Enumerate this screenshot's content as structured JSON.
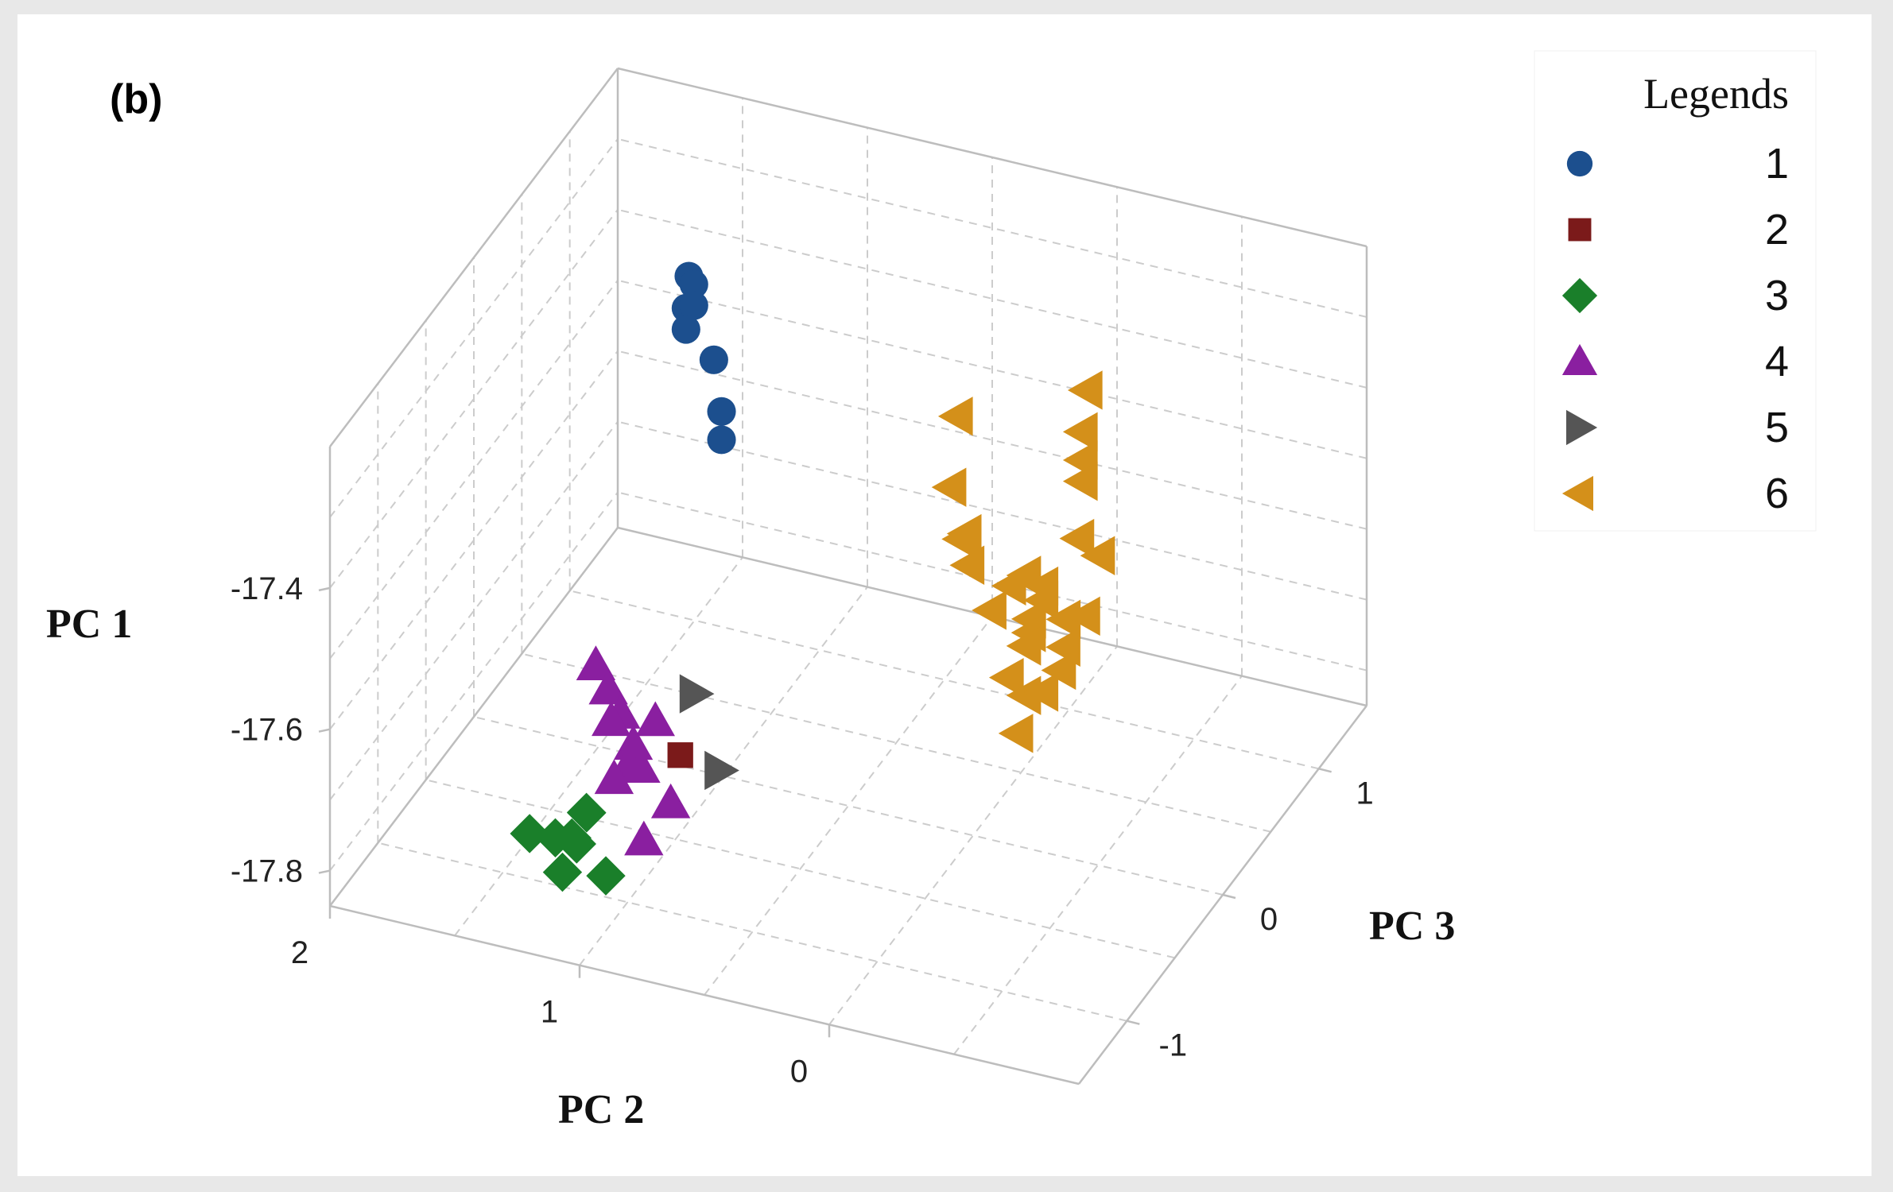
{
  "chart_data": {
    "type": "scatter",
    "subtype": "3d-scatter",
    "panel_label": "(b)",
    "axes": {
      "vertical": {
        "label": "PC 1",
        "ticks": [
          "-17.4",
          "-17.6",
          "-17.8"
        ],
        "tick_values": [
          -17.4,
          -17.6,
          -17.8
        ],
        "range": [
          -17.85,
          -17.2
        ]
      },
      "left_depth": {
        "label": "PC 2",
        "ticks": [
          "2",
          "1",
          "0"
        ],
        "tick_values": [
          2,
          1,
          0
        ],
        "range": [
          -1.0,
          2.0
        ]
      },
      "right_depth": {
        "label": "PC 3",
        "ticks": [
          "1",
          "0",
          "-1"
        ],
        "tick_values": [
          1,
          0,
          -1
        ],
        "range": [
          -1.5,
          1.5
        ]
      }
    },
    "grid": true,
    "legend": {
      "title": "Legends",
      "placement": "top-right",
      "entries": [
        {
          "label": "1",
          "marker": "circle",
          "color": "#1c4f8e"
        },
        {
          "label": "2",
          "marker": "square",
          "color": "#7b1a1a"
        },
        {
          "label": "3",
          "marker": "diamond",
          "color": "#1a7f2a"
        },
        {
          "label": "4",
          "marker": "triangle-up",
          "color": "#8a1fa0"
        },
        {
          "label": "5",
          "marker": "triangle-right",
          "color": "#555555"
        },
        {
          "label": "6",
          "marker": "triangle-left",
          "color": "#d4901a"
        }
      ]
    },
    "series": [
      {
        "name": "1",
        "points": [
          {
            "pc1": -17.27,
            "pc2": 1.35,
            "pc3": 0.55
          },
          {
            "pc1": -17.28,
            "pc2": 1.33,
            "pc3": 0.55
          },
          {
            "pc1": -17.31,
            "pc2": 1.35,
            "pc3": 0.52
          },
          {
            "pc1": -17.31,
            "pc2": 1.33,
            "pc3": 0.55
          },
          {
            "pc1": -17.34,
            "pc2": 1.35,
            "pc3": 0.52
          },
          {
            "pc1": -17.38,
            "pc2": 1.25,
            "pc3": 0.55
          },
          {
            "pc1": -17.44,
            "pc2": 1.2,
            "pc3": 0.5
          },
          {
            "pc1": -17.48,
            "pc2": 1.2,
            "pc3": 0.5
          }
        ]
      },
      {
        "name": "2",
        "points": [
          {
            "pc1": -17.74,
            "pc2": 1.0,
            "pc3": -0.45
          }
        ]
      },
      {
        "name": "3",
        "points": [
          {
            "pc1": -17.82,
            "pc2": 1.3,
            "pc3": -0.8
          },
          {
            "pc1": -17.8,
            "pc2": 1.28,
            "pc3": -0.7
          },
          {
            "pc1": -17.79,
            "pc2": 1.26,
            "pc3": -0.75
          },
          {
            "pc1": -17.79,
            "pc2": 1.4,
            "pc3": -0.98
          },
          {
            "pc1": -17.8,
            "pc2": 1.32,
            "pc3": -0.92
          },
          {
            "pc1": -17.81,
            "pc2": 1.25,
            "pc3": -0.88
          },
          {
            "pc1": -17.84,
            "pc2": 1.28,
            "pc3": -0.95
          },
          {
            "pc1": -17.86,
            "pc2": 1.16,
            "pc3": -0.81
          }
        ]
      },
      {
        "name": "4",
        "points": [
          {
            "pc1": -17.62,
            "pc2": 1.3,
            "pc3": -0.55
          },
          {
            "pc1": -17.65,
            "pc2": 1.25,
            "pc3": -0.55
          },
          {
            "pc1": -17.68,
            "pc2": 1.2,
            "pc3": -0.55
          },
          {
            "pc1": -17.7,
            "pc2": 1.25,
            "pc3": -0.52
          },
          {
            "pc1": -17.7,
            "pc2": 1.1,
            "pc3": -0.45
          },
          {
            "pc1": -17.72,
            "pc2": 1.15,
            "pc3": -0.55
          },
          {
            "pc1": -17.74,
            "pc2": 1.15,
            "pc3": -0.6
          },
          {
            "pc1": -17.76,
            "pc2": 1.2,
            "pc3": -0.62
          },
          {
            "pc1": -17.75,
            "pc2": 1.12,
            "pc3": -0.55
          },
          {
            "pc1": -17.79,
            "pc2": 1.0,
            "pc3": -0.55
          },
          {
            "pc1": -17.82,
            "pc2": 1.05,
            "pc3": -0.7
          }
        ]
      },
      {
        "name": "5",
        "points": [
          {
            "pc1": -17.68,
            "pc2": 1.0,
            "pc3": -0.3
          },
          {
            "pc1": -17.78,
            "pc2": 0.9,
            "pc3": -0.3
          }
        ]
      },
      {
        "name": "6",
        "points": [
          {
            "pc1": -17.35,
            "pc2": -0.15,
            "pc3": 0.8
          },
          {
            "pc1": -17.4,
            "pc2": -0.15,
            "pc3": 0.75
          },
          {
            "pc1": -17.42,
            "pc2": 0.35,
            "pc3": 0.75
          },
          {
            "pc1": -17.44,
            "pc2": -0.15,
            "pc3": 0.75
          },
          {
            "pc1": -17.47,
            "pc2": 0.28,
            "pc3": 0.5
          },
          {
            "pc1": -17.47,
            "pc2": -0.15,
            "pc3": 0.75
          },
          {
            "pc1": -17.52,
            "pc2": 0.2,
            "pc3": 0.45
          },
          {
            "pc1": -17.54,
            "pc2": 0.24,
            "pc3": 0.5
          },
          {
            "pc1": -17.55,
            "pc2": -0.14,
            "pc3": 0.74
          },
          {
            "pc1": -17.57,
            "pc2": 0.2,
            "pc3": 0.48
          },
          {
            "pc1": -17.58,
            "pc2": 0.0,
            "pc3": 0.55
          },
          {
            "pc1": -17.6,
            "pc2": -0.05,
            "pc3": 0.6
          },
          {
            "pc1": -17.58,
            "pc2": -0.2,
            "pc3": 0.8
          },
          {
            "pc1": -17.62,
            "pc2": 0.1,
            "pc3": 0.45
          },
          {
            "pc1": -17.62,
            "pc2": -0.05,
            "pc3": 0.6
          },
          {
            "pc1": -17.64,
            "pc2": -0.02,
            "pc3": 0.55
          },
          {
            "pc1": -17.65,
            "pc2": -0.12,
            "pc3": 0.65
          },
          {
            "pc1": -17.67,
            "pc2": 0.0,
            "pc3": 0.6
          },
          {
            "pc1": -17.68,
            "pc2": 0.0,
            "pc3": 0.55
          },
          {
            "pc1": -17.7,
            "pc2": -0.1,
            "pc3": 0.7
          },
          {
            "pc1": -17.72,
            "pc2": 0.05,
            "pc3": 0.5
          },
          {
            "pc1": -17.75,
            "pc2": 0.0,
            "pc3": 0.55
          },
          {
            "pc1": -17.75,
            "pc2": -0.05,
            "pc3": 0.6
          },
          {
            "pc1": -17.8,
            "pc2": 0.02,
            "pc3": 0.52
          },
          {
            "pc1": -17.6,
            "pc2": 0.06,
            "pc3": 0.55
          },
          {
            "pc1": -17.66,
            "pc2": -0.16,
            "pc3": 0.75
          },
          {
            "pc1": -17.73,
            "pc2": -0.09,
            "pc3": 0.68
          }
        ]
      }
    ]
  }
}
